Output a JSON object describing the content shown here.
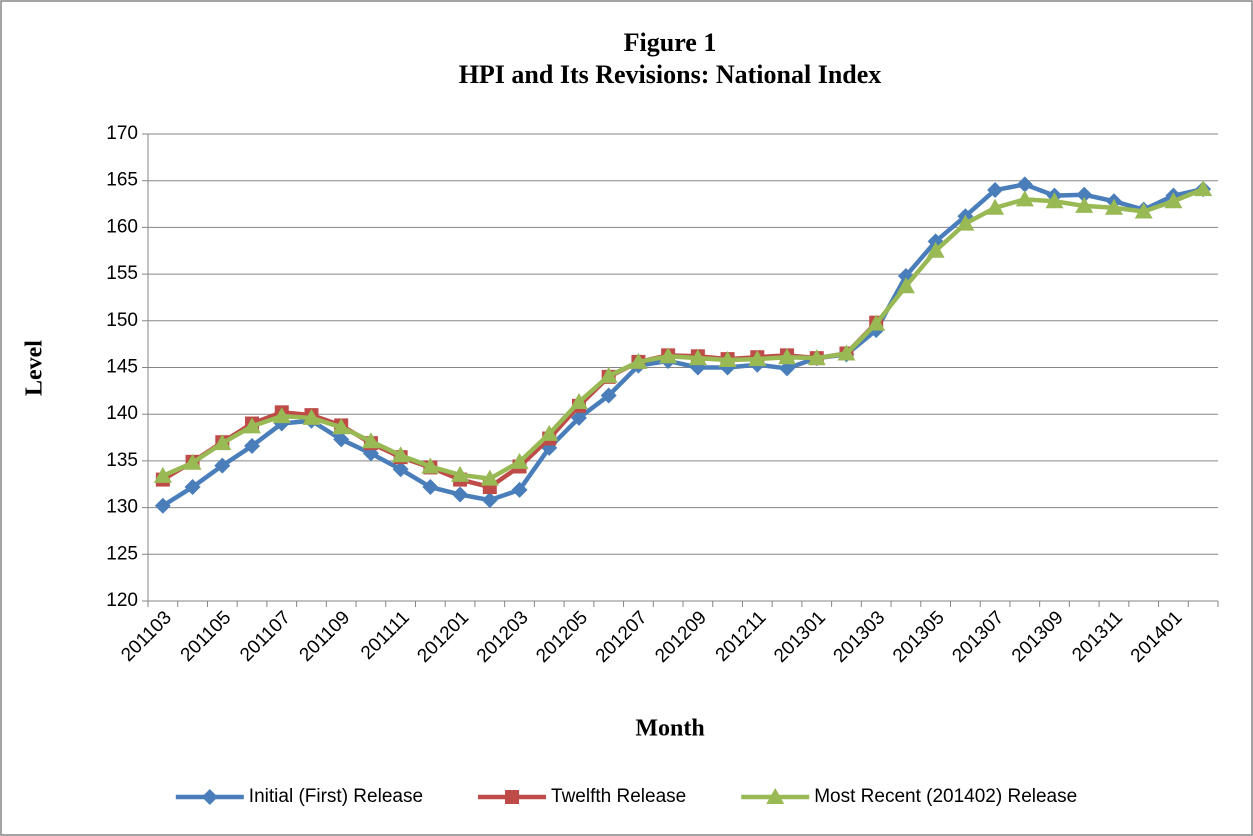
{
  "chart_data": {
    "type": "line",
    "title": "Figure 1",
    "subtitle": "HPI and Its Revisions: National Index",
    "x_label": "Month",
    "y_label": "Level",
    "categories": [
      "201103",
      null,
      "201105",
      null,
      "201107",
      null,
      "201109",
      null,
      "201111",
      null,
      "201201",
      null,
      "201203",
      null,
      "201205",
      null,
      "201207",
      null,
      "201209",
      null,
      "201211",
      null,
      "201301",
      null,
      "201303",
      null,
      "201305",
      null,
      "201307",
      null,
      "201309",
      null,
      "201311",
      null,
      "201401",
      null
    ],
    "series": [
      {
        "name": "Initial (First) Release",
        "color": "#4a7ebb",
        "marker": "diamond",
        "values": [
          130.2,
          132.2,
          134.5,
          136.6,
          139.0,
          139.3,
          137.3,
          135.8,
          134.1,
          132.2,
          131.4,
          130.8,
          131.9,
          136.4,
          139.6,
          142.0,
          145.2,
          145.7,
          145.0,
          145.0,
          145.3,
          144.9,
          146.0,
          146.4,
          149.0,
          154.8,
          158.5,
          161.2,
          164.0,
          164.6,
          163.4,
          163.5,
          162.8,
          161.9,
          163.4,
          164.1
        ]
      },
      {
        "name": "Twelfth Release",
        "color": "#be4b48",
        "marker": "square",
        "values": [
          133.0,
          134.9,
          137.0,
          139.0,
          140.2,
          139.9,
          138.8,
          136.9,
          135.4,
          134.3,
          133.0,
          132.2,
          134.4,
          137.4,
          140.9,
          144.0,
          145.6,
          146.3,
          146.2,
          145.9,
          146.1,
          146.3,
          146.0,
          146.5,
          149.8,
          null,
          null,
          null,
          null,
          null,
          null,
          null,
          null,
          null,
          null,
          null
        ]
      },
      {
        "name": "Most Recent (201402) Release",
        "color": "#98b954",
        "marker": "triangle",
        "values": [
          133.4,
          134.8,
          136.9,
          138.7,
          139.8,
          139.6,
          138.6,
          137.1,
          135.6,
          134.4,
          133.5,
          133.1,
          134.9,
          137.9,
          141.3,
          144.1,
          145.6,
          146.2,
          146.0,
          145.8,
          145.9,
          146.1,
          146.0,
          146.5,
          149.7,
          153.7,
          157.5,
          160.4,
          162.1,
          163.0,
          162.8,
          162.3,
          162.1,
          161.7,
          162.8,
          164.1
        ]
      }
    ],
    "ylim": [
      120,
      170
    ],
    "yticks": [
      120,
      125,
      130,
      135,
      140,
      145,
      150,
      155,
      160,
      165,
      170
    ],
    "grid": true,
    "legend": "bottom"
  }
}
